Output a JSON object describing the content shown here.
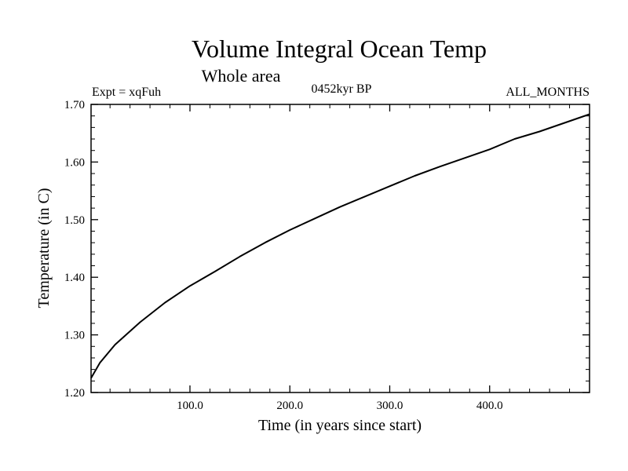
{
  "chart_data": {
    "type": "line",
    "title": "Volume Integral Ocean Temp",
    "subtitle": "Whole area",
    "expt_label": "Expt = xqFuh",
    "period_label": "0452kyr BP",
    "months_label": "ALL_MONTHS",
    "xlabel": "Time (in years since start)",
    "ylabel": "Temperature (in C)",
    "xlim": [
      1,
      500
    ],
    "ylim": [
      1.2,
      1.7
    ],
    "xticks": [
      100,
      200,
      300,
      400
    ],
    "xtick_labels": [
      "100.0",
      "200.0",
      "300.0",
      "400.0"
    ],
    "yticks": [
      1.2,
      1.3,
      1.4,
      1.5,
      1.6,
      1.7
    ],
    "ytick_labels": [
      "1.20",
      "1.30",
      "1.40",
      "1.50",
      "1.60",
      "1.70"
    ],
    "series": [
      {
        "name": "Volume Integral Ocean Temp",
        "x": [
          1,
          10,
          25,
          50,
          75,
          100,
          125,
          150,
          175,
          200,
          225,
          250,
          275,
          300,
          325,
          350,
          375,
          400,
          425,
          450,
          475,
          500
        ],
        "y": [
          1.225,
          1.252,
          1.283,
          1.322,
          1.356,
          1.385,
          1.41,
          1.436,
          1.46,
          1.482,
          1.502,
          1.522,
          1.54,
          1.558,
          1.576,
          1.592,
          1.607,
          1.622,
          1.64,
          1.653,
          1.668,
          1.683
        ]
      }
    ]
  }
}
